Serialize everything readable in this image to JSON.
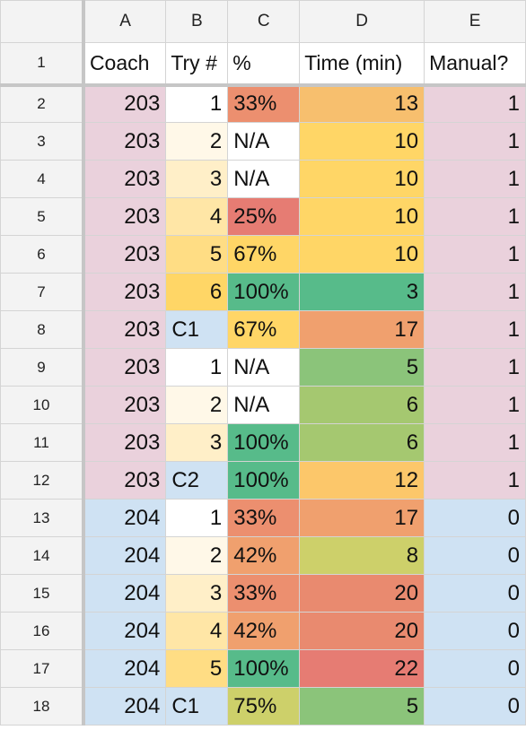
{
  "columns": [
    "A",
    "B",
    "C",
    "D",
    "E"
  ],
  "header_row_label": "1",
  "headers": [
    "Coach",
    "Try #",
    "%",
    "Time (min)",
    "Manual?"
  ],
  "rows": [
    {
      "num": "2",
      "cells": [
        "203",
        "1",
        "33%",
        "13",
        "1"
      ],
      "colors": [
        "#ead1dc",
        "#ffffff",
        "#ec8f6f",
        "#f7bf6e",
        "#ead1dc"
      ]
    },
    {
      "num": "3",
      "cells": [
        "203",
        "2",
        "N/A",
        "10",
        "1"
      ],
      "colors": [
        "#ead1dc",
        "#fff8e8",
        "#ffffff",
        "#ffd666",
        "#ead1dc"
      ]
    },
    {
      "num": "4",
      "cells": [
        "203",
        "3",
        "N/A",
        "10",
        "1"
      ],
      "colors": [
        "#ead1dc",
        "#ffefc8",
        "#ffffff",
        "#ffd666",
        "#ead1dc"
      ]
    },
    {
      "num": "5",
      "cells": [
        "203",
        "4",
        "25%",
        "10",
        "1"
      ],
      "colors": [
        "#ead1dc",
        "#ffe6a6",
        "#e67c73",
        "#ffd666",
        "#ead1dc"
      ]
    },
    {
      "num": "6",
      "cells": [
        "203",
        "5",
        "67%",
        "10",
        "1"
      ],
      "colors": [
        "#ead1dc",
        "#ffdd84",
        "#ffd666",
        "#ffd666",
        "#ead1dc"
      ]
    },
    {
      "num": "7",
      "cells": [
        "203",
        "6",
        "100%",
        "3",
        "1"
      ],
      "colors": [
        "#ead1dc",
        "#ffd666",
        "#57bb8a",
        "#57bb8a",
        "#ead1dc"
      ]
    },
    {
      "num": "8",
      "cells": [
        "203",
        "C1",
        "67%",
        "17",
        "1"
      ],
      "colors": [
        "#ead1dc",
        "#cfe2f3",
        "#ffd666",
        "#f0a06e",
        "#ead1dc"
      ]
    },
    {
      "num": "9",
      "cells": [
        "203",
        "1",
        "N/A",
        "5",
        "1"
      ],
      "colors": [
        "#ead1dc",
        "#ffffff",
        "#ffffff",
        "#8bc47a",
        "#ead1dc"
      ]
    },
    {
      "num": "10",
      "cells": [
        "203",
        "2",
        "N/A",
        "6",
        "1"
      ],
      "colors": [
        "#ead1dc",
        "#fff8e8",
        "#ffffff",
        "#a5c870",
        "#ead1dc"
      ]
    },
    {
      "num": "11",
      "cells": [
        "203",
        "3",
        "100%",
        "6",
        "1"
      ],
      "colors": [
        "#ead1dc",
        "#ffefc8",
        "#57bb8a",
        "#a5c870",
        "#ead1dc"
      ]
    },
    {
      "num": "12",
      "cells": [
        "203",
        "C2",
        "100%",
        "12",
        "1"
      ],
      "colors": [
        "#ead1dc",
        "#cfe2f3",
        "#57bb8a",
        "#fcc76a",
        "#ead1dc"
      ]
    },
    {
      "num": "13",
      "cells": [
        "204",
        "1",
        "33%",
        "17",
        "0"
      ],
      "colors": [
        "#cfe2f3",
        "#ffffff",
        "#ec8f6f",
        "#f0a06e",
        "#cfe2f3"
      ]
    },
    {
      "num": "14",
      "cells": [
        "204",
        "2",
        "42%",
        "8",
        "0"
      ],
      "colors": [
        "#cfe2f3",
        "#fff8e8",
        "#f0a06e",
        "#cdd06a",
        "#cfe2f3"
      ]
    },
    {
      "num": "15",
      "cells": [
        "204",
        "3",
        "33%",
        "20",
        "0"
      ],
      "colors": [
        "#cfe2f3",
        "#ffefc8",
        "#ec8f6f",
        "#e98a6f",
        "#cfe2f3"
      ]
    },
    {
      "num": "16",
      "cells": [
        "204",
        "4",
        "42%",
        "20",
        "0"
      ],
      "colors": [
        "#cfe2f3",
        "#ffe6a6",
        "#f0a06e",
        "#e98a6f",
        "#cfe2f3"
      ]
    },
    {
      "num": "17",
      "cells": [
        "204",
        "5",
        "100%",
        "22",
        "0"
      ],
      "colors": [
        "#cfe2f3",
        "#ffdd84",
        "#57bb8a",
        "#e67c73",
        "#cfe2f3"
      ]
    },
    {
      "num": "18",
      "cells": [
        "204",
        "C1",
        "75%",
        "5",
        "0"
      ],
      "colors": [
        "#cfe2f3",
        "#cfe2f3",
        "#cdd06a",
        "#8bc47a",
        "#cfe2f3"
      ]
    }
  ]
}
